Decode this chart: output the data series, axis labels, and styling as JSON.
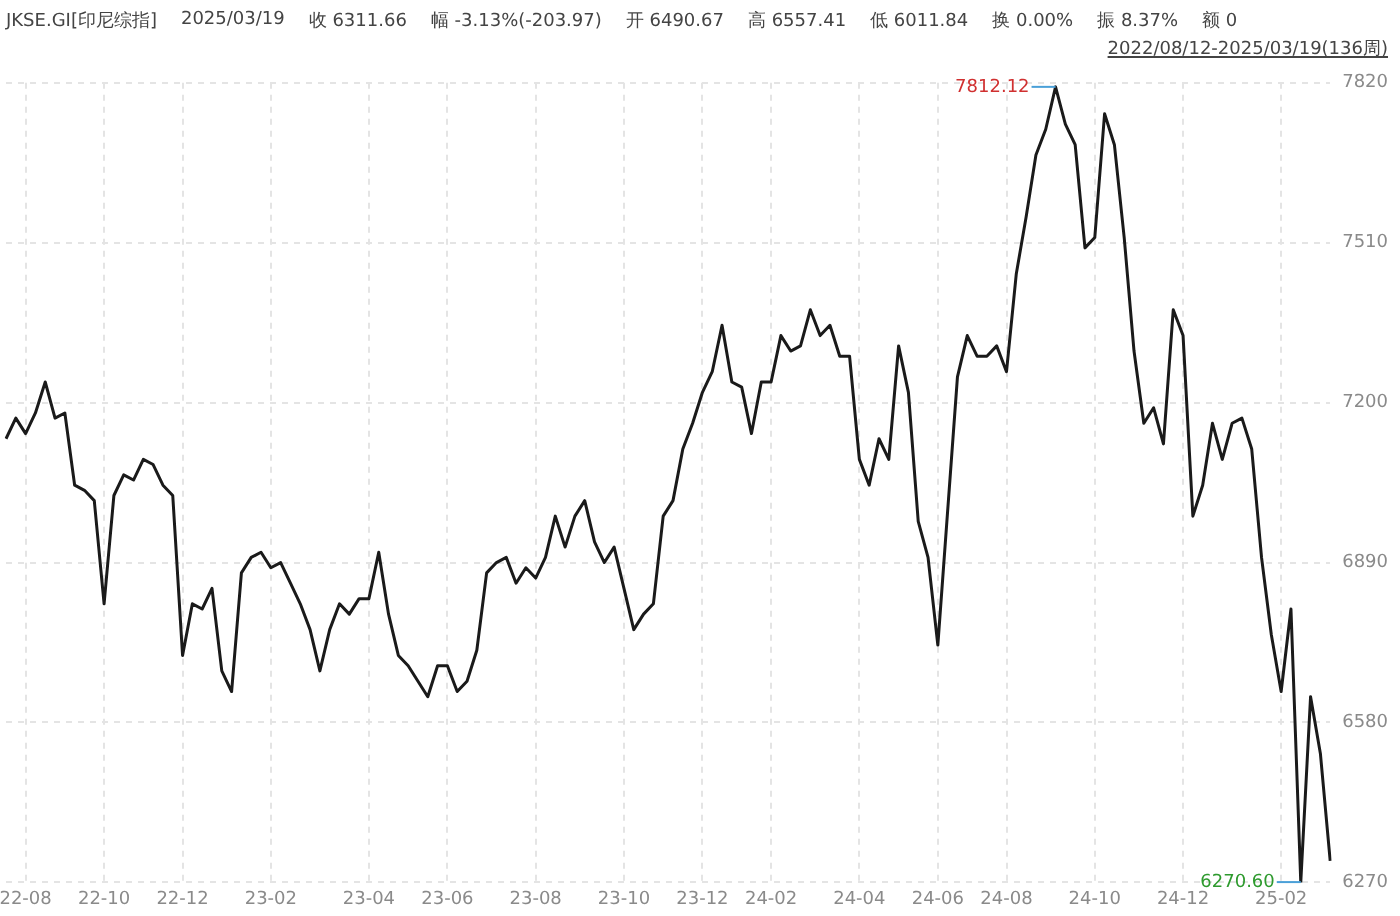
{
  "chart_data": {
    "type": "line",
    "title": "JKSE.GI[印尼综指]",
    "subtitle": "2022/08/12-2025/03/19(136周)",
    "annotations": [
      "2025/03/19",
      "收 6311.66",
      "幅 -3.13%(-203.97)",
      "开 6490.67",
      "高 6557.41",
      "低 6011.84",
      "换 0.00%",
      "振 8.37%",
      "额 0",
      "7812.12",
      "6270.60"
    ],
    "categories": [
      null,
      null,
      "22-08",
      null,
      null,
      null,
      null,
      null,
      null,
      null,
      "22-10",
      null,
      null,
      null,
      null,
      null,
      null,
      null,
      "22-12",
      null,
      null,
      null,
      null,
      null,
      null,
      null,
      null,
      "23-02",
      null,
      null,
      null,
      null,
      null,
      null,
      null,
      null,
      null,
      "23-04",
      null,
      null,
      null,
      null,
      null,
      null,
      null,
      "23-06",
      null,
      null,
      null,
      null,
      null,
      null,
      null,
      null,
      "23-08",
      null,
      null,
      null,
      null,
      null,
      null,
      null,
      null,
      "23-10",
      null,
      null,
      null,
      null,
      null,
      null,
      null,
      "23-12",
      null,
      null,
      null,
      null,
      null,
      null,
      "24-02",
      null,
      null,
      null,
      null,
      null,
      null,
      null,
      null,
      "24-04",
      null,
      null,
      null,
      null,
      null,
      null,
      null,
      "24-06",
      null,
      null,
      null,
      null,
      null,
      null,
      "24-08",
      null,
      null,
      null,
      null,
      null,
      null,
      null,
      null,
      "24-10",
      null,
      null,
      null,
      null,
      null,
      null,
      null,
      null,
      "24-12",
      null,
      null,
      null,
      null,
      null,
      null,
      null,
      null,
      null,
      "25-02",
      null,
      null,
      null,
      null,
      null
    ],
    "series": [
      {
        "color": "#1a1a1a",
        "values": [
          7130,
          7170,
          7140,
          7180,
          7240,
          7170,
          7180,
          7040,
          7030,
          7010,
          6810,
          7020,
          7060,
          7050,
          7090,
          7080,
          7040,
          7020,
          6710,
          6810,
          6800,
          6840,
          6680,
          6640,
          6870,
          6900,
          6910,
          6880,
          6890,
          6850,
          6810,
          6760,
          6680,
          6760,
          6810,
          6790,
          6820,
          6820,
          6910,
          6790,
          6710,
          6690,
          6660,
          6630,
          6690,
          6690,
          6640,
          6660,
          6720,
          6870,
          6890,
          6900,
          6850,
          6880,
          6860,
          6900,
          6980,
          6920,
          6980,
          7010,
          6930,
          6890,
          6920,
          6840,
          6760,
          6790,
          6810,
          6980,
          7010,
          7110,
          7160,
          7220,
          7260,
          7350,
          7240,
          7230,
          7140,
          7240,
          7240,
          7330,
          7300,
          7310,
          7380,
          7330,
          7350,
          7290,
          7290,
          7090,
          7040,
          7130,
          7090,
          7310,
          7220,
          6970,
          6900,
          6730,
          6990,
          7250,
          7330,
          7290,
          7290,
          7310,
          7260,
          7450,
          7560,
          7680,
          7730,
          7812.12,
          7740,
          7700,
          7500,
          7520,
          7760,
          7700,
          7520,
          7300,
          7160,
          7190,
          7120,
          7380,
          7330,
          6980,
          7040,
          7160,
          7090,
          7160,
          7170,
          7110,
          6900,
          6750,
          6640,
          6800,
          6270.6,
          6630,
          6520,
          6311.66
        ]
      }
    ],
    "ylim": [
      6270,
      7820
    ],
    "yticks": [
      6270,
      6580,
      6890,
      7200,
      7510,
      7820
    ],
    "grid": true,
    "legend": false,
    "marker": "none",
    "line_style": "solid"
  }
}
